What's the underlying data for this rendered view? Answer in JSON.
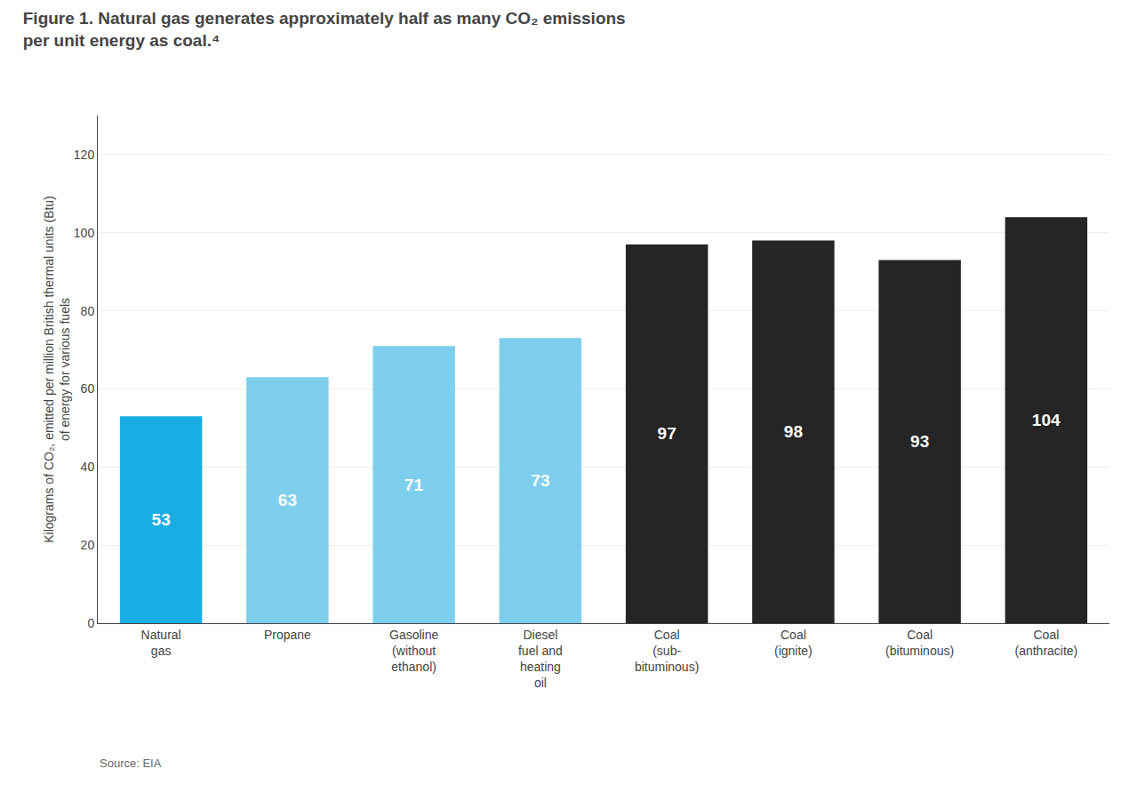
{
  "chart_data": {
    "type": "bar",
    "title": "Figure 1. Natural gas generates approximately half as many CO₂ emissions\nper unit energy as coal.⁴",
    "ylabel": "Kilograms of CO₂, emitted per million British thermal units (Btu)\nof energy for various fuels",
    "annotations": [
      "Source: EIA"
    ],
    "categories": [
      "Natural\ngas",
      "Propane",
      "Gasoline\n(without\nethanol)",
      "Diesel\nfuel and\nheating\noil",
      "Coal\n(sub-\nbituminous)",
      "Coal\n(ignite)",
      "Coal\n(bituminous)",
      "Coal\n(anthracite)"
    ],
    "values": [
      53,
      63,
      71,
      73,
      97,
      98,
      93,
      104
    ],
    "colors": [
      "#1aade3",
      "#7dcfed",
      "#7dcfed",
      "#7dcfed",
      "#252525",
      "#252525",
      "#252525",
      "#252525"
    ],
    "data_labels": true,
    "ylim": [
      0,
      130
    ],
    "yticks": [
      0,
      20,
      40,
      60,
      80,
      100,
      120
    ],
    "grid": true
  }
}
